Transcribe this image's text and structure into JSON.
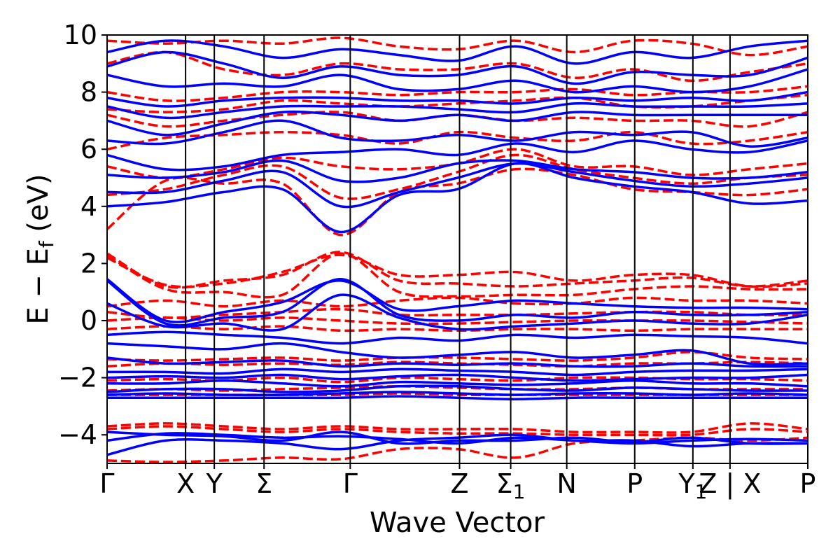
{
  "chart_data": {
    "type": "line",
    "xlabel": "Wave Vector",
    "ylabel_main": "E − E",
    "ylabel_sub": "f",
    "ylabel_unit": " (eV)",
    "ylim": [
      -5,
      10
    ],
    "yticks": [
      {
        "value": 10,
        "label": "10"
      },
      {
        "value": 8,
        "label": "8"
      },
      {
        "value": 6,
        "label": "6"
      },
      {
        "value": 4,
        "label": "4"
      },
      {
        "value": 2,
        "label": "2"
      },
      {
        "value": 0,
        "label": "0"
      },
      {
        "value": -2,
        "label": "−2"
      },
      {
        "value": -4,
        "label": "−4"
      }
    ],
    "kpoints": [
      {
        "pos": 0.0,
        "label": "Γ",
        "sub": ""
      },
      {
        "pos": 0.112,
        "label": "X",
        "sub": ""
      },
      {
        "pos": 0.153,
        "label": "Y",
        "sub": ""
      },
      {
        "pos": 0.224,
        "label": "Σ",
        "sub": ""
      },
      {
        "pos": 0.347,
        "label": "Γ",
        "sub": ""
      },
      {
        "pos": 0.503,
        "label": "Z",
        "sub": ""
      },
      {
        "pos": 0.576,
        "label": "Σ",
        "sub": "1"
      },
      {
        "pos": 0.656,
        "label": "N",
        "sub": ""
      },
      {
        "pos": 0.753,
        "label": "P",
        "sub": ""
      },
      {
        "pos": 0.836,
        "label": "Y",
        "sub": "1"
      },
      {
        "pos": 0.889,
        "label": "Z | X",
        "sub": ""
      },
      {
        "pos": 1.0,
        "label": "P",
        "sub": ""
      }
    ],
    "series": [
      {
        "style": "solid",
        "color": "#0000ff"
      },
      {
        "style": "dashed",
        "color": "#ff0000"
      }
    ],
    "bands_blue": [
      [
        -4.7,
        -4.2,
        -4.2,
        -4.3,
        -4.5,
        -4.2,
        -4.1,
        -4.0,
        -4.2,
        -4.2,
        -4.4,
        -4.3,
        -4.3
      ],
      [
        -4.2,
        -3.95,
        -4.0,
        -4.1,
        -4.05,
        -4.15,
        -4.3,
        -4.1,
        -4.2,
        -4.3,
        -4.2,
        -4.15,
        -4.2
      ],
      [
        -3.9,
        -4.0,
        -4.05,
        -4.2,
        -3.9,
        -4.3,
        -4.2,
        -4.2,
        -4.1,
        -4.25,
        -4.1,
        -4.3,
        -4.3
      ],
      [
        -2.7,
        -2.7,
        -2.7,
        -2.7,
        -2.7,
        -2.65,
        -2.7,
        -2.75,
        -2.7,
        -2.7,
        -2.7,
        -2.7,
        -2.7
      ],
      [
        -2.6,
        -2.55,
        -2.6,
        -2.6,
        -2.55,
        -2.5,
        -2.55,
        -2.6,
        -2.55,
        -2.55,
        -2.6,
        -2.55,
        -2.6
      ],
      [
        -2.5,
        -2.4,
        -2.4,
        -2.5,
        -2.45,
        -2.3,
        -2.3,
        -2.4,
        -2.45,
        -2.35,
        -2.4,
        -2.45,
        -2.45
      ],
      [
        -2.2,
        -2.2,
        -2.1,
        -2.2,
        -2.3,
        -2.15,
        -2.2,
        -2.25,
        -2.2,
        -2.1,
        -2.2,
        -2.2,
        -2.3
      ],
      [
        -2.0,
        -1.95,
        -2.0,
        -1.9,
        -2.05,
        -1.95,
        -1.9,
        -2.0,
        -2.1,
        -2.05,
        -2.0,
        -2.0,
        -1.9
      ],
      [
        -1.8,
        -1.8,
        -1.85,
        -1.7,
        -1.8,
        -1.7,
        -1.75,
        -1.8,
        -1.9,
        -1.8,
        -1.75,
        -1.75,
        -1.7
      ],
      [
        -1.3,
        -1.5,
        -1.45,
        -1.4,
        -1.6,
        -1.5,
        -1.55,
        -1.5,
        -1.6,
        -1.6,
        -1.5,
        -1.6,
        -1.6
      ],
      [
        -0.8,
        -0.9,
        -1.0,
        -0.8,
        -1.1,
        -1.3,
        -1.2,
        -1.1,
        -1.3,
        -1.2,
        -1.05,
        -1.5,
        -1.5
      ],
      [
        -0.5,
        -0.4,
        -0.5,
        -0.6,
        -0.8,
        -0.6,
        -0.7,
        -0.5,
        -0.6,
        -0.5,
        -0.55,
        -0.6,
        -0.8
      ],
      [
        0.6,
        -0.2,
        -0.1,
        -0.3,
        0.9,
        0.1,
        -0.3,
        -0.2,
        -0.1,
        0.0,
        -0.1,
        -0.1,
        0.2
      ],
      [
        1.4,
        -0.1,
        0.1,
        0.3,
        1.45,
        0.2,
        0.0,
        0.2,
        0.1,
        0.3,
        0.2,
        0.2,
        0.3
      ],
      [
        1.45,
        0.0,
        0.3,
        0.65,
        1.4,
        0.4,
        0.5,
        0.7,
        0.6,
        0.5,
        0.45,
        0.45,
        0.4
      ],
      [
        4.0,
        4.15,
        4.5,
        4.6,
        3.1,
        4.4,
        4.6,
        5.5,
        5.0,
        4.7,
        4.5,
        4.1,
        4.2
      ],
      [
        4.5,
        4.5,
        4.9,
        5.2,
        4.0,
        4.5,
        5.0,
        5.5,
        5.2,
        4.9,
        4.7,
        4.8,
        5.0
      ],
      [
        5.1,
        5.0,
        5.2,
        5.6,
        4.9,
        5.0,
        5.5,
        5.6,
        5.3,
        5.2,
        5.0,
        5.0,
        5.2
      ],
      [
        5.8,
        5.3,
        5.4,
        5.8,
        5.9,
        6.0,
        5.8,
        6.2,
        5.9,
        6.3,
        6.0,
        5.9,
        6.3
      ],
      [
        6.3,
        6.2,
        6.6,
        7.0,
        6.4,
        6.3,
        6.5,
        6.3,
        6.6,
        6.5,
        6.6,
        6.1,
        6.4
      ],
      [
        7.0,
        6.5,
        6.9,
        7.3,
        7.2,
        7.0,
        7.2,
        7.0,
        7.3,
        7.2,
        7.2,
        7.2,
        7.2
      ],
      [
        7.5,
        7.1,
        7.3,
        7.5,
        7.5,
        7.5,
        7.4,
        7.3,
        7.6,
        7.5,
        7.5,
        7.5,
        7.6
      ],
      [
        7.8,
        7.5,
        7.7,
        7.8,
        7.8,
        7.7,
        7.7,
        7.6,
        7.8,
        7.7,
        7.8,
        7.7,
        8.0
      ],
      [
        8.6,
        8.2,
        8.3,
        8.2,
        8.6,
        8.1,
        8.1,
        8.4,
        8.0,
        8.2,
        8.0,
        8.2,
        8.8
      ],
      [
        8.9,
        9.4,
        9.0,
        8.5,
        8.9,
        8.6,
        8.6,
        8.9,
        8.3,
        8.7,
        8.6,
        8.6,
        9.2
      ],
      [
        9.4,
        9.8,
        9.6,
        9.2,
        9.5,
        9.3,
        9.1,
        9.6,
        9.0,
        9.4,
        9.2,
        9.6,
        9.8
      ]
    ],
    "bands_red": [
      [
        -4.9,
        -4.95,
        -4.9,
        -4.8,
        -4.85,
        -4.5,
        -4.5,
        -4.8,
        -4.3,
        -4.2,
        -4.1,
        -4.2,
        -4.1
      ],
      [
        -3.7,
        -3.6,
        -3.7,
        -3.8,
        -3.7,
        -3.8,
        -3.8,
        -3.8,
        -3.9,
        -3.9,
        -3.9,
        -3.6,
        -3.8
      ],
      [
        -3.8,
        -3.7,
        -3.8,
        -3.9,
        -3.8,
        -3.9,
        -3.95,
        -3.95,
        -4.0,
        -4.0,
        -4.0,
        -3.8,
        -3.9
      ],
      [
        -2.6,
        -2.6,
        -2.6,
        -2.6,
        -2.6,
        -2.55,
        -2.6,
        -2.6,
        -2.6,
        -2.6,
        -2.6,
        -2.6,
        -2.6
      ],
      [
        -2.45,
        -2.4,
        -2.45,
        -2.4,
        -2.35,
        -2.3,
        -2.35,
        -2.4,
        -2.4,
        -2.35,
        -2.4,
        -2.4,
        -2.4
      ],
      [
        -2.1,
        -2.05,
        -2.1,
        -2.0,
        -2.15,
        -2.0,
        -2.05,
        -2.1,
        -2.0,
        -2.0,
        -2.05,
        -2.05,
        -2.1
      ],
      [
        -1.6,
        -1.5,
        -1.55,
        -1.5,
        -1.55,
        -1.45,
        -1.5,
        -1.55,
        -1.6,
        -1.5,
        -1.5,
        -1.45,
        -1.5
      ],
      [
        -1.35,
        -1.4,
        -1.35,
        -1.3,
        -1.4,
        -1.3,
        -1.3,
        -1.35,
        -1.4,
        -1.3,
        -1.1,
        -1.3,
        -1.35
      ],
      [
        -0.3,
        -0.2,
        -0.3,
        -0.2,
        -0.35,
        -0.3,
        -0.35,
        -0.3,
        -0.3,
        -0.35,
        -0.3,
        -0.3,
        -0.3
      ],
      [
        0.0,
        0.1,
        0.0,
        0.1,
        0.0,
        -0.1,
        -0.1,
        -0.05,
        0.0,
        0.0,
        0.0,
        -0.05,
        -0.1
      ],
      [
        0.3,
        0.1,
        0.2,
        0.3,
        0.4,
        0.2,
        0.2,
        0.2,
        0.25,
        0.3,
        0.3,
        0.2,
        0.2
      ],
      [
        0.5,
        0.7,
        0.5,
        0.7,
        0.5,
        0.7,
        0.8,
        0.6,
        0.6,
        0.8,
        0.7,
        0.7,
        0.6
      ],
      [
        2.3,
        1.1,
        1.0,
        0.9,
        2.35,
        1.0,
        0.85,
        0.9,
        0.9,
        1.1,
        1.2,
        1.1,
        1.1
      ],
      [
        2.35,
        1.2,
        1.4,
        1.6,
        2.4,
        1.4,
        1.3,
        1.2,
        1.3,
        1.4,
        1.5,
        1.2,
        1.4
      ],
      [
        2.2,
        1.25,
        1.3,
        1.7,
        2.3,
        1.6,
        1.6,
        1.7,
        1.4,
        1.6,
        1.6,
        1.2,
        1.3
      ],
      [
        3.2,
        4.9,
        4.8,
        4.8,
        3.0,
        4.5,
        4.8,
        5.3,
        5.1,
        4.6,
        4.5,
        4.4,
        4.6
      ],
      [
        4.4,
        4.6,
        5.1,
        5.4,
        4.3,
        4.6,
        5.2,
        5.8,
        5.3,
        5.0,
        4.8,
        5.0,
        5.1
      ],
      [
        5.4,
        5.0,
        5.3,
        5.7,
        5.4,
        5.3,
        5.5,
        6.0,
        5.4,
        5.4,
        5.1,
        5.3,
        5.5
      ],
      [
        6.0,
        6.4,
        6.5,
        6.6,
        6.5,
        6.2,
        6.6,
        6.4,
        6.3,
        6.6,
        6.2,
        6.3,
        6.6
      ],
      [
        7.2,
        6.8,
        7.0,
        7.2,
        7.3,
        7.0,
        7.2,
        7.0,
        7.1,
        7.0,
        7.0,
        6.8,
        7.3
      ],
      [
        7.4,
        7.3,
        7.4,
        7.7,
        7.6,
        7.5,
        7.6,
        7.7,
        7.8,
        7.5,
        7.5,
        7.7,
        7.9
      ],
      [
        8.0,
        7.7,
        7.8,
        8.0,
        8.0,
        7.9,
        8.0,
        8.0,
        8.1,
        7.9,
        8.0,
        8.0,
        8.2
      ],
      [
        9.0,
        9.4,
        8.8,
        8.6,
        9.0,
        8.8,
        8.8,
        9.0,
        8.5,
        8.8,
        8.4,
        8.7,
        9.0
      ],
      [
        9.8,
        9.7,
        9.8,
        9.7,
        9.9,
        9.6,
        9.5,
        9.8,
        9.4,
        9.8,
        9.7,
        9.3,
        9.6
      ]
    ]
  }
}
